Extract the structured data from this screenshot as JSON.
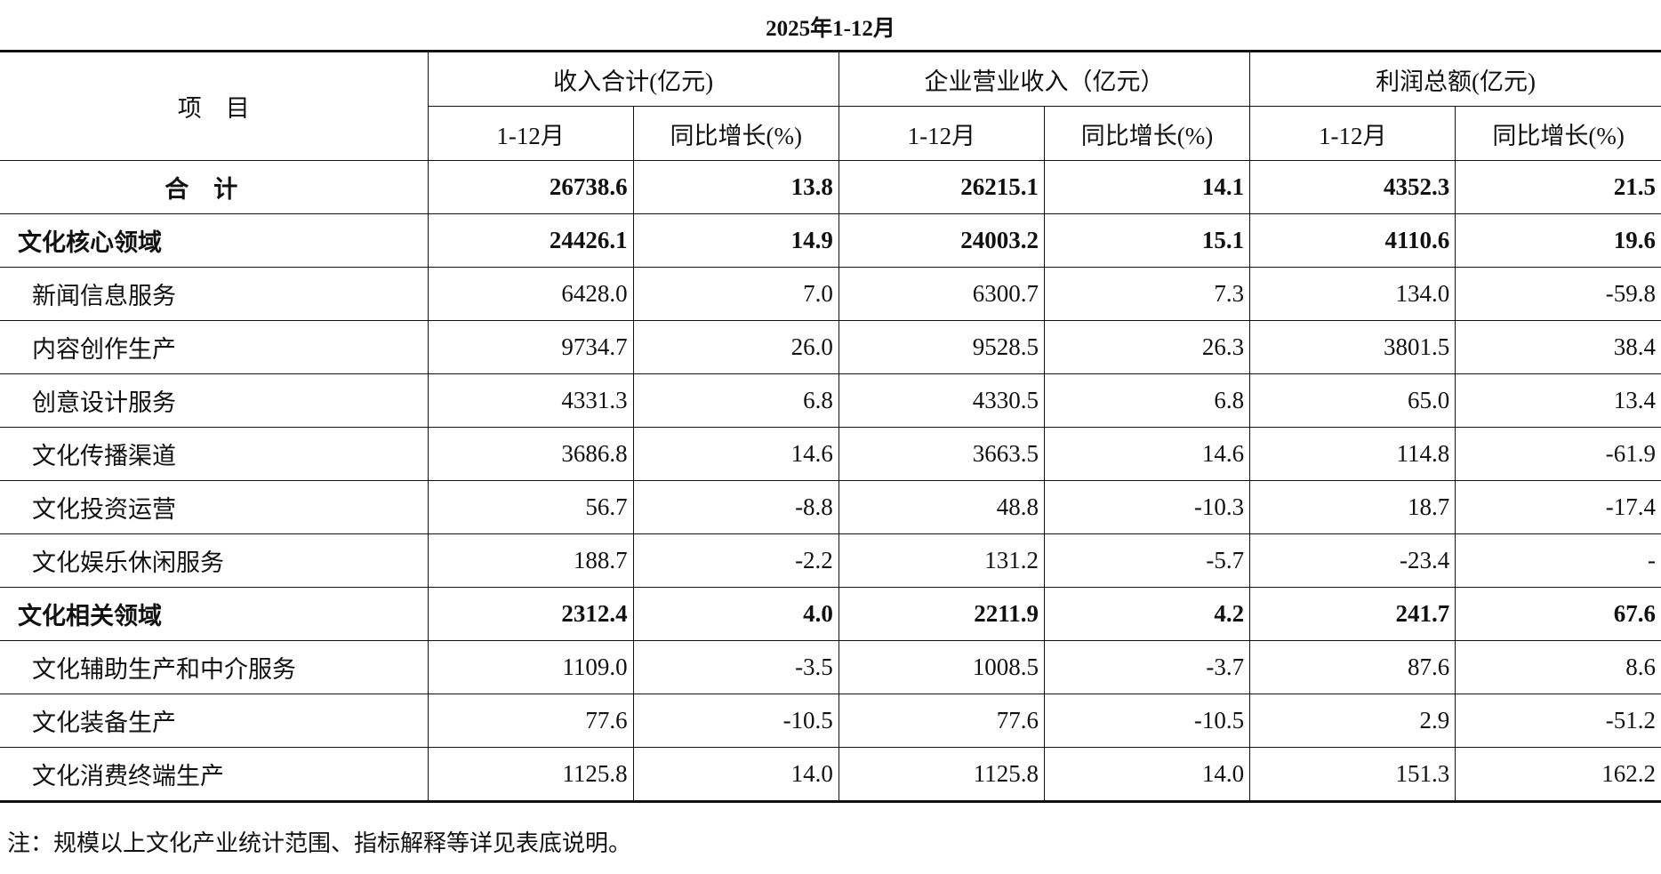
{
  "title": "2025年1-12月",
  "header": {
    "item": "项　目",
    "groups": [
      "收入合计(亿元)",
      "企业营业收入（亿元）",
      "利润总额(亿元)"
    ],
    "sub": [
      "1-12月",
      "同比增长(%)",
      "1-12月",
      "同比增长(%)",
      "1-12月",
      "同比增长(%)"
    ]
  },
  "rows": [
    {
      "label": "合计",
      "values": [
        "26738.6",
        "13.8",
        "26215.1",
        "14.1",
        "4352.3",
        "21.5"
      ]
    },
    {
      "label": "文化核心领域",
      "values": [
        "24426.1",
        "14.9",
        "24003.2",
        "15.1",
        "4110.6",
        "19.6"
      ]
    },
    {
      "label": "新闻信息服务",
      "values": [
        "6428.0",
        "7.0",
        "6300.7",
        "7.3",
        "134.0",
        "-59.8"
      ]
    },
    {
      "label": "内容创作生产",
      "values": [
        "9734.7",
        "26.0",
        "9528.5",
        "26.3",
        "3801.5",
        "38.4"
      ]
    },
    {
      "label": "创意设计服务",
      "values": [
        "4331.3",
        "6.8",
        "4330.5",
        "6.8",
        "65.0",
        "13.4"
      ]
    },
    {
      "label": "文化传播渠道",
      "values": [
        "3686.8",
        "14.6",
        "3663.5",
        "14.6",
        "114.8",
        "-61.9"
      ]
    },
    {
      "label": "文化投资运营",
      "values": [
        "56.7",
        "-8.8",
        "48.8",
        "-10.3",
        "18.7",
        "-17.4"
      ]
    },
    {
      "label": "文化娱乐休闲服务",
      "values": [
        "188.7",
        "-2.2",
        "131.2",
        "-5.7",
        "-23.4",
        "-"
      ]
    },
    {
      "label": "文化相关领域",
      "values": [
        "2312.4",
        "4.0",
        "2211.9",
        "4.2",
        "241.7",
        "67.6"
      ]
    },
    {
      "label": "文化辅助生产和中介服务",
      "values": [
        "1109.0",
        "-3.5",
        "1008.5",
        "-3.7",
        "87.6",
        "8.6"
      ]
    },
    {
      "label": "文化装备生产",
      "values": [
        "77.6",
        "-10.5",
        "77.6",
        "-10.5",
        "2.9",
        "-51.2"
      ]
    },
    {
      "label": "文化消费终端生产",
      "values": [
        "1125.8",
        "14.0",
        "1125.8",
        "14.0",
        "151.3",
        "162.2"
      ]
    }
  ],
  "note": "注：规模以上文化产业统计范围、指标解释等详见表底说明。"
}
